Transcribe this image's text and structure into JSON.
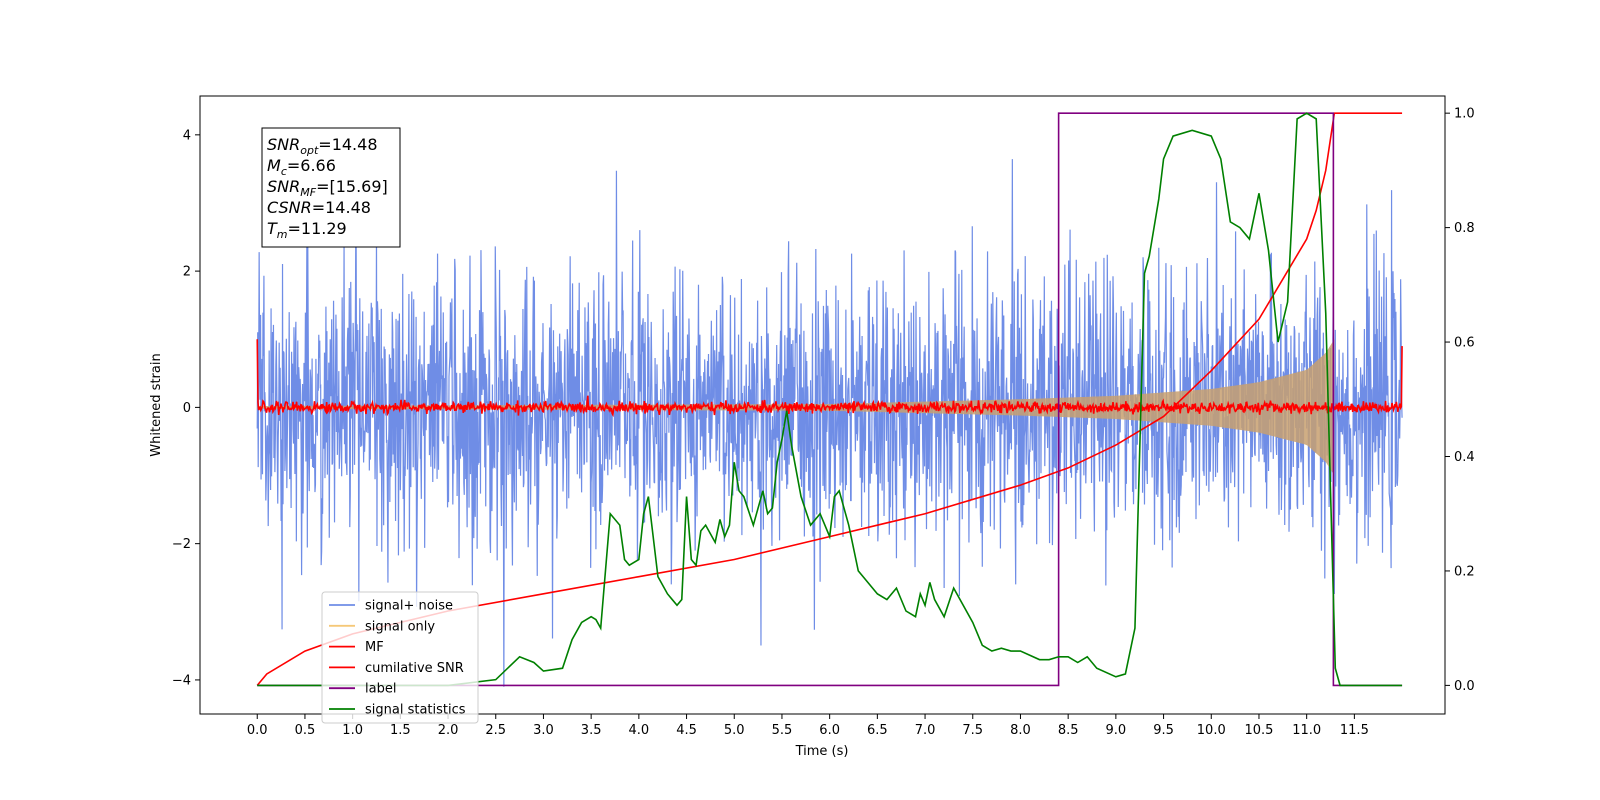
{
  "chart_data": {
    "type": "line",
    "title": "",
    "xlabel": "Time (s)",
    "ylabel": "Whitened strain",
    "xlim": [
      -0.6,
      12.45
    ],
    "ylim": [
      -4.5,
      4.57
    ],
    "ylim_right": [
      -0.05,
      1.03
    ],
    "x_ticks": [
      "0.0",
      "0.5",
      "1.0",
      "1.5",
      "2.0",
      "2.5",
      "3.0",
      "3.5",
      "4.0",
      "4.5",
      "5.0",
      "5.5",
      "6.0",
      "6.5",
      "7.0",
      "7.5",
      "8.0",
      "8.5",
      "9.0",
      "9.5",
      "10.0",
      "10.5",
      "11.0",
      "11.5"
    ],
    "y_ticks": [
      "-4",
      "-2",
      "0",
      "2",
      "4"
    ],
    "y_ticks_right": [
      "0.0",
      "0.2",
      "0.4",
      "0.6",
      "0.8",
      "1.0"
    ],
    "grid": false,
    "legend_position": "lower-left",
    "annotation": [
      {
        "name": "SNR",
        "sub": "opt",
        "value": "=14.48"
      },
      {
        "name": "M",
        "sub": "c",
        "value": "=6.66"
      },
      {
        "name": "SNR",
        "sub": "MF",
        "value": "=[15.69]"
      },
      {
        "name": "CSNR",
        "sub": "",
        "value": "=14.48"
      },
      {
        "name": "T",
        "sub": "m",
        "value": "=11.29"
      }
    ],
    "series": [
      {
        "name": "signal+ noise",
        "axis": "left",
        "color": "#6f8de6",
        "noise_sd": 1.0,
        "x_range": [
          0.0,
          12.0
        ]
      },
      {
        "name": "signal only",
        "axis": "left",
        "color": "#f5c878",
        "envelope": [
          [
            0.0,
            0.02
          ],
          [
            6.0,
            0.05
          ],
          [
            8.0,
            0.12
          ],
          [
            9.0,
            0.17
          ],
          [
            10.0,
            0.27
          ],
          [
            10.5,
            0.37
          ],
          [
            11.0,
            0.55
          ],
          [
            11.2,
            0.8
          ],
          [
            11.29,
            1.0
          ]
        ]
      },
      {
        "name": "MF",
        "axis": "left",
        "color": "#ff0000",
        "baseline": 0.0,
        "start_value": 1.0,
        "end_value": 0.9
      },
      {
        "name": "cumilative SNR",
        "axis": "right",
        "color": "#ff0000",
        "x": [
          0.0,
          0.1,
          0.5,
          1.0,
          2.0,
          3.0,
          4.0,
          5.0,
          6.0,
          7.0,
          8.0,
          8.5,
          9.0,
          9.5,
          10.0,
          10.5,
          11.0,
          11.1,
          11.2,
          11.29,
          11.3,
          12.0
        ],
        "y": [
          0.0,
          0.02,
          0.06,
          0.09,
          0.13,
          0.16,
          0.19,
          0.22,
          0.26,
          0.3,
          0.35,
          0.38,
          0.42,
          0.47,
          0.55,
          0.64,
          0.78,
          0.83,
          0.9,
          1.0,
          1.0,
          1.0
        ]
      },
      {
        "name": "label",
        "axis": "right",
        "color": "#800080",
        "x": [
          0.0,
          8.4,
          8.4,
          11.28,
          11.28,
          12.0
        ],
        "y": [
          0.0,
          0.0,
          1.0,
          1.0,
          0.0,
          0.0
        ]
      },
      {
        "name": "signal statistics",
        "axis": "right",
        "color": "#008000",
        "x": [
          0.0,
          1.0,
          2.0,
          2.5,
          2.75,
          2.9,
          3.0,
          3.2,
          3.3,
          3.4,
          3.5,
          3.55,
          3.6,
          3.65,
          3.7,
          3.8,
          3.85,
          3.9,
          4.0,
          4.05,
          4.1,
          4.2,
          4.3,
          4.35,
          4.4,
          4.45,
          4.5,
          4.55,
          4.6,
          4.65,
          4.7,
          4.8,
          4.85,
          4.9,
          4.95,
          5.0,
          5.05,
          5.1,
          5.2,
          5.3,
          5.35,
          5.4,
          5.45,
          5.5,
          5.55,
          5.6,
          5.7,
          5.8,
          5.85,
          5.9,
          6.0,
          6.05,
          6.1,
          6.2,
          6.3,
          6.35,
          6.4,
          6.5,
          6.6,
          6.7,
          6.8,
          6.9,
          6.95,
          7.0,
          7.05,
          7.1,
          7.2,
          7.3,
          7.5,
          7.6,
          7.7,
          7.8,
          7.9,
          8.0,
          8.2,
          8.3,
          8.4,
          8.5,
          8.6,
          8.7,
          8.8,
          9.0,
          9.1,
          9.2,
          9.3,
          9.35,
          9.4,
          9.45,
          9.5,
          9.6,
          9.8,
          10.0,
          10.1,
          10.2,
          10.3,
          10.4,
          10.5,
          10.6,
          10.7,
          10.8,
          10.9,
          11.0,
          11.1,
          11.2,
          11.3,
          11.35,
          11.4,
          12.0
        ],
        "y": [
          0.0,
          0.0,
          0.0,
          0.01,
          0.05,
          0.04,
          0.025,
          0.03,
          0.08,
          0.11,
          0.12,
          0.115,
          0.1,
          0.2,
          0.3,
          0.28,
          0.22,
          0.21,
          0.22,
          0.3,
          0.33,
          0.19,
          0.16,
          0.15,
          0.14,
          0.15,
          0.33,
          0.22,
          0.21,
          0.27,
          0.28,
          0.25,
          0.29,
          0.26,
          0.28,
          0.39,
          0.34,
          0.33,
          0.28,
          0.34,
          0.3,
          0.31,
          0.39,
          0.43,
          0.48,
          0.42,
          0.33,
          0.28,
          0.29,
          0.3,
          0.26,
          0.33,
          0.34,
          0.28,
          0.2,
          0.19,
          0.18,
          0.16,
          0.15,
          0.17,
          0.13,
          0.12,
          0.16,
          0.14,
          0.18,
          0.15,
          0.12,
          0.17,
          0.11,
          0.07,
          0.06,
          0.065,
          0.06,
          0.06,
          0.045,
          0.045,
          0.05,
          0.05,
          0.04,
          0.05,
          0.03,
          0.015,
          0.02,
          0.1,
          0.72,
          0.75,
          0.8,
          0.85,
          0.92,
          0.96,
          0.97,
          0.96,
          0.92,
          0.81,
          0.8,
          0.78,
          0.86,
          0.76,
          0.6,
          0.67,
          0.99,
          1.0,
          0.99,
          0.65,
          0.03,
          0.0,
          0.0,
          0.0
        ]
      }
    ]
  }
}
